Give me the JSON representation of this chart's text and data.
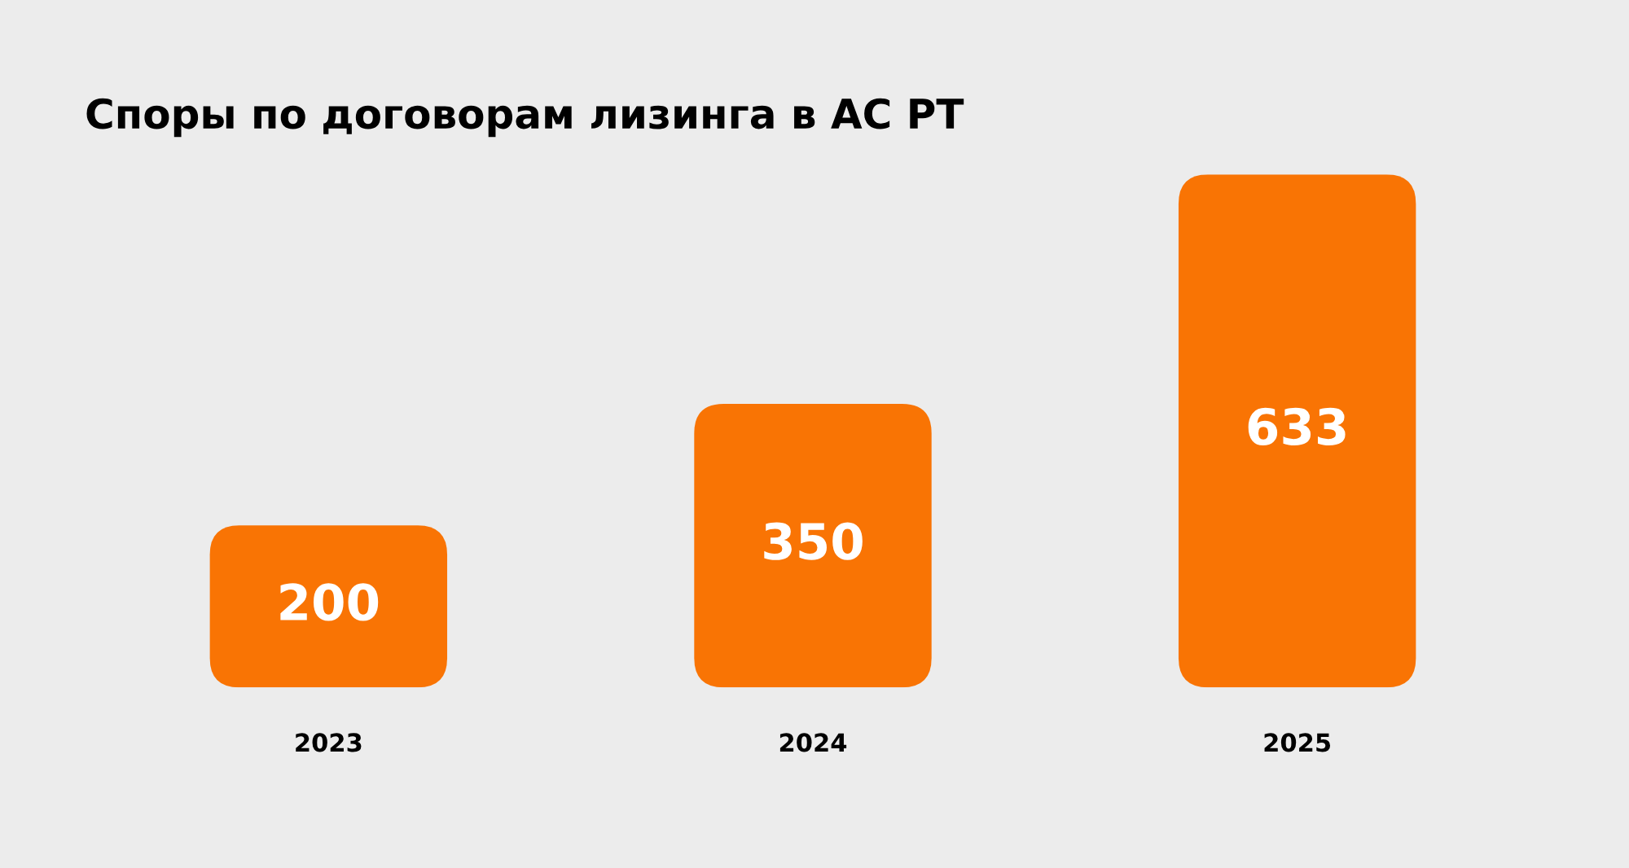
{
  "chart_data": {
    "type": "bar",
    "title": "Споры по договорам лизинга в АС РТ",
    "categories": [
      "2023",
      "2024",
      "2025"
    ],
    "values": [
      200,
      350,
      633
    ],
    "color": "#f97404",
    "data_labels": true
  }
}
